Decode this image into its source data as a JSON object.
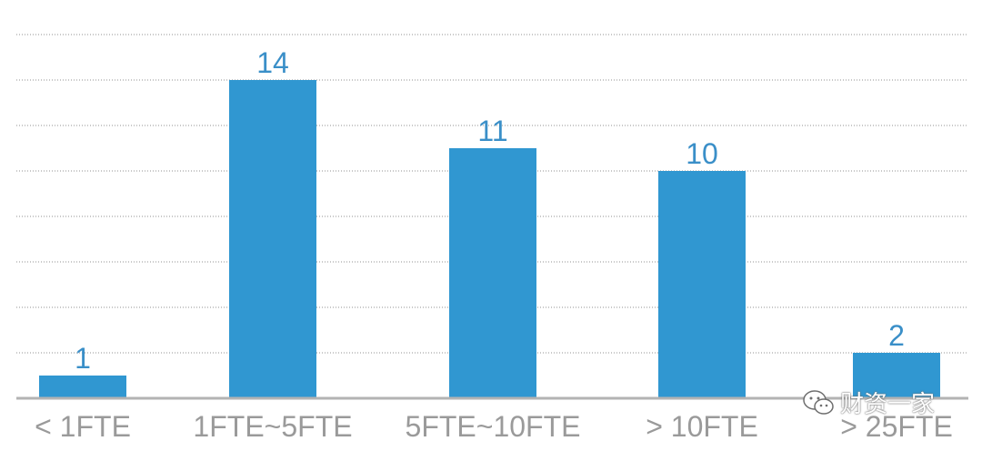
{
  "chart_data": {
    "type": "bar",
    "categories": [
      "< 1FTE",
      "1FTE~5FTE",
      "5FTE~10FTE",
      "> 10FTE",
      "> 25FTE"
    ],
    "values": [
      1,
      14,
      11,
      10,
      2
    ],
    "title": "",
    "xlabel": "",
    "ylabel": "",
    "ylim": [
      0,
      16
    ],
    "grid": true,
    "gridlines": 8,
    "legend": "none",
    "bar_color": "#3097d1",
    "label_color": "#3a8fc8",
    "tick_color": "#9a9a9a"
  },
  "watermark": {
    "text": "财资一家",
    "icon": "wechat-icon"
  }
}
